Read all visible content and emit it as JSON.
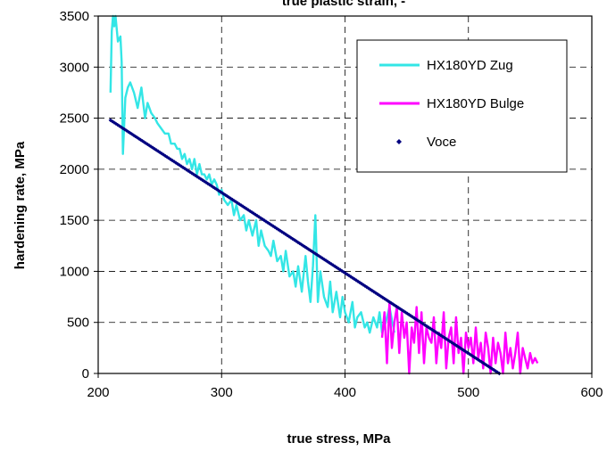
{
  "chart_data": {
    "type": "line",
    "top_title": "true plastic strain, -",
    "xlabel": "true stress, MPa",
    "ylabel": "hardening rate, MPa",
    "xlim": [
      200,
      600
    ],
    "ylim": [
      0,
      3500
    ],
    "xticks": [
      200,
      300,
      400,
      500,
      600
    ],
    "yticks": [
      0,
      500,
      1000,
      1500,
      2000,
      2500,
      3000,
      3500
    ],
    "grid": "dashed",
    "legend_position": "top-right",
    "series": [
      {
        "name": "HX180YD Zug",
        "color": "#33e6e6",
        "style": "line",
        "x": [
          210,
          211,
          212,
          213,
          214,
          216,
          218,
          219,
          220,
          222,
          224,
          226,
          229,
          232,
          235,
          238,
          240,
          243,
          246,
          248,
          251,
          254,
          257,
          259,
          262,
          264,
          266,
          268,
          270,
          272,
          274,
          276,
          278,
          280,
          282,
          284,
          286,
          288,
          290,
          292,
          294,
          296,
          298,
          300,
          302,
          305,
          308,
          310,
          312,
          315,
          318,
          320,
          322,
          325,
          328,
          330,
          332,
          335,
          338,
          340,
          342,
          345,
          348,
          350,
          352,
          355,
          358,
          360,
          362,
          365,
          368,
          370,
          372,
          374,
          376,
          378,
          380,
          383,
          386,
          388,
          390,
          393,
          396,
          398,
          400,
          403,
          406,
          408,
          410,
          413,
          416,
          418,
          420,
          423,
          426,
          428,
          430,
          433,
          436,
          440
        ],
        "y": [
          2750,
          3350,
          3500,
          3400,
          3500,
          3250,
          3300,
          3050,
          2150,
          2700,
          2800,
          2850,
          2750,
          2600,
          2800,
          2500,
          2650,
          2550,
          2500,
          2450,
          2400,
          2350,
          2350,
          2250,
          2250,
          2200,
          2200,
          2100,
          2150,
          2050,
          2100,
          2000,
          2100,
          1950,
          2050,
          1950,
          1950,
          1900,
          1950,
          1850,
          1900,
          1850,
          1750,
          1800,
          1700,
          1650,
          1700,
          1550,
          1650,
          1500,
          1550,
          1400,
          1500,
          1350,
          1500,
          1250,
          1400,
          1250,
          1200,
          1150,
          1300,
          1100,
          1150,
          1000,
          1200,
          950,
          1000,
          850,
          1050,
          800,
          1150,
          900,
          700,
          1050,
          1550,
          700,
          1000,
          750,
          650,
          900,
          600,
          800,
          550,
          750,
          600,
          500,
          700,
          450,
          550,
          600,
          450,
          500,
          400,
          550,
          450,
          600,
          400,
          500,
          650,
          400
        ]
      },
      {
        "name": "HX180YD Bulge",
        "color": "#ff00ff",
        "style": "line",
        "x": [
          430,
          432,
          434,
          436,
          438,
          440,
          442,
          444,
          446,
          448,
          450,
          452,
          454,
          456,
          458,
          460,
          462,
          464,
          466,
          468,
          470,
          472,
          474,
          476,
          478,
          480,
          482,
          484,
          486,
          488,
          490,
          492,
          494,
          496,
          498,
          500,
          502,
          504,
          506,
          508,
          510,
          512,
          514,
          516,
          518,
          520,
          522,
          524,
          526,
          528,
          530,
          532,
          534,
          536,
          538,
          540,
          542,
          544,
          546,
          548,
          550,
          552,
          554,
          556
        ],
        "y": [
          350,
          600,
          100,
          700,
          250,
          500,
          650,
          200,
          600,
          350,
          500,
          0,
          450,
          300,
          650,
          200,
          600,
          100,
          450,
          350,
          300,
          550,
          100,
          400,
          250,
          600,
          50,
          350,
          450,
          100,
          550,
          200,
          350,
          0,
          400,
          250,
          350,
          100,
          450,
          150,
          300,
          50,
          400,
          250,
          0,
          350,
          100,
          300,
          200,
          0,
          400,
          100,
          250,
          50,
          200,
          400,
          0,
          250,
          150,
          50,
          200,
          100,
          150,
          100
        ]
      },
      {
        "name": "Voce",
        "color": "#000080",
        "style": "markers",
        "x_start": 210,
        "y_start": 2480,
        "x_end": 525,
        "y_end": 0
      }
    ]
  }
}
